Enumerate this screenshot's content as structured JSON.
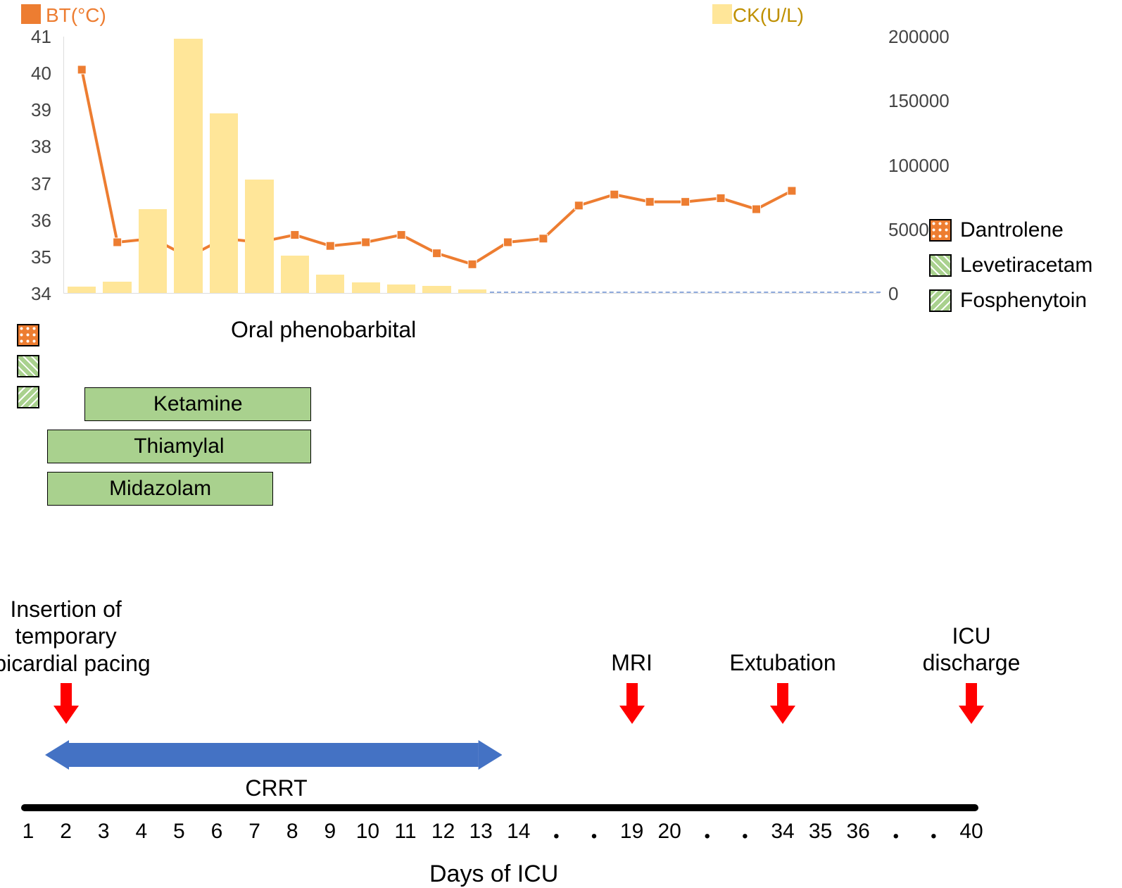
{
  "chart": {
    "bt_label": "BT(°C)",
    "ck_label": "CK(U/L)",
    "line_color": "#ed7d31",
    "bar_color": "#ffe699",
    "dash_color": "#8faadc",
    "y_left": {
      "min": 34,
      "max": 41,
      "ticks": [
        34,
        35,
        36,
        37,
        38,
        39,
        40,
        41
      ]
    },
    "y_right": {
      "min": 0,
      "max": 200000,
      "ticks": [
        0,
        50000,
        100000,
        150000,
        200000
      ]
    },
    "n_slots": 23,
    "bars": [
      {
        "i": 0,
        "v": 5000
      },
      {
        "i": 1,
        "v": 9000
      },
      {
        "i": 2,
        "v": 65000
      },
      {
        "i": 3,
        "v": 198000
      },
      {
        "i": 4,
        "v": 140000
      },
      {
        "i": 5,
        "v": 88000
      },
      {
        "i": 6,
        "v": 29000
      },
      {
        "i": 7,
        "v": 14000
      },
      {
        "i": 8,
        "v": 8000
      },
      {
        "i": 9,
        "v": 6500
      },
      {
        "i": 10,
        "v": 5500
      },
      {
        "i": 11,
        "v": 2500
      }
    ],
    "points": [
      {
        "i": 0,
        "v": 40.1
      },
      {
        "i": 1,
        "v": 35.4
      },
      {
        "i": 2,
        "v": 35.5
      },
      {
        "i": 3,
        "v": 35.0
      },
      {
        "i": 4,
        "v": 35.5
      },
      {
        "i": 5,
        "v": 35.4
      },
      {
        "i": 6,
        "v": 35.6
      },
      {
        "i": 7,
        "v": 35.3
      },
      {
        "i": 8,
        "v": 35.4
      },
      {
        "i": 9,
        "v": 35.6
      },
      {
        "i": 10,
        "v": 35.1
      },
      {
        "i": 11,
        "v": 34.8
      },
      {
        "i": 12,
        "v": 35.4
      },
      {
        "i": 13,
        "v": 35.5
      },
      {
        "i": 14,
        "v": 36.4
      },
      {
        "i": 15,
        "v": 36.7
      },
      {
        "i": 16,
        "v": 36.5
      },
      {
        "i": 17,
        "v": 36.5
      },
      {
        "i": 18,
        "v": 36.6
      },
      {
        "i": 19,
        "v": 36.3
      },
      {
        "i": 20,
        "v": 36.8
      }
    ]
  },
  "legend": {
    "items": [
      {
        "label": "Dantrolene",
        "fill": "#ed7d31",
        "pattern": "dots"
      },
      {
        "label": "Levetiracetam",
        "fill": "#a9d18e",
        "pattern": "diag"
      },
      {
        "label": "Fosphenytoin",
        "fill": "#a9d18e",
        "pattern": "diag2"
      }
    ]
  },
  "timeline": {
    "tiny_squares": [
      {
        "fill": "#ed7d31",
        "pattern": "dots"
      },
      {
        "fill": "#a9d18e",
        "pattern": "diag"
      },
      {
        "fill": "#a9d18e",
        "pattern": "diag2"
      }
    ],
    "oral_label": "Oral phenobarbital",
    "oral_color": "#548235",
    "meds": [
      {
        "label": "Ketamine",
        "start": 3,
        "end": 8,
        "fill": "#a9d18e"
      },
      {
        "label": "Thiamylal",
        "start": 2,
        "end": 8,
        "fill": "#a9d18e"
      },
      {
        "label": "Midazolam",
        "start": 2,
        "end": 7,
        "fill": "#a9d18e"
      }
    ]
  },
  "events": {
    "items": [
      {
        "label": "Insertion of\ntemporary\nepicardial pacing",
        "day": 2
      },
      {
        "label": "MRI",
        "day": 19
      },
      {
        "label": "Extubation",
        "day": 34
      },
      {
        "label": "ICU\ndischarge",
        "day": 40
      }
    ],
    "arrow_color": "#ff0000",
    "crrt_label": "CRRT",
    "crrt_color": "#4472c4",
    "crrt_start": 2,
    "crrt_end": 13
  },
  "axis": {
    "labels": [
      "1",
      "2",
      "3",
      "4",
      "5",
      "6",
      "7",
      "8",
      "9",
      "10",
      "11",
      "12",
      "13",
      "14",
      "・",
      "・",
      "19",
      "20",
      "・",
      "・",
      "34",
      "35",
      "36",
      "・",
      "・",
      "40"
    ],
    "title": "Days of ICU"
  }
}
